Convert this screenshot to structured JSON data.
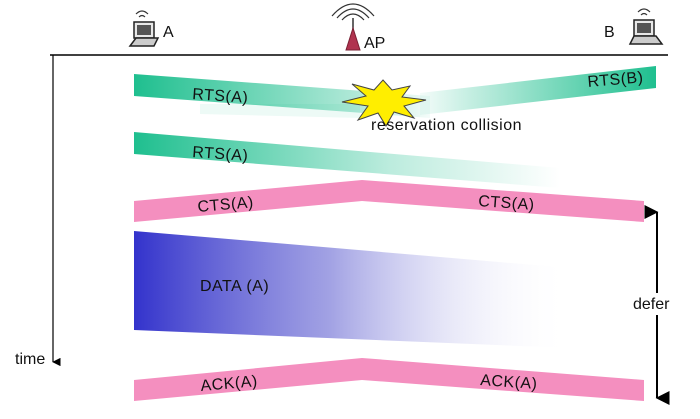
{
  "nodes": {
    "a": {
      "label": "A"
    },
    "ap": {
      "label": "AP"
    },
    "b": {
      "label": "B"
    }
  },
  "frames": {
    "rts_a_1": "RTS(A)",
    "rts_b": "RTS(B)",
    "collision": "reservation collision",
    "rts_a_2": "RTS(A)",
    "cts_left": "CTS(A)",
    "cts_right": "CTS(A)",
    "data": "DATA (A)",
    "ack_left": "ACK(A)",
    "ack_right": "ACK(A)"
  },
  "axis": {
    "time": "time",
    "defer": "defer"
  },
  "colors": {
    "rts": "#1fbf8f",
    "cts": "#f48fbf",
    "data": "#3333cc",
    "collision": "#ffee00",
    "ap": "#b0334f"
  }
}
